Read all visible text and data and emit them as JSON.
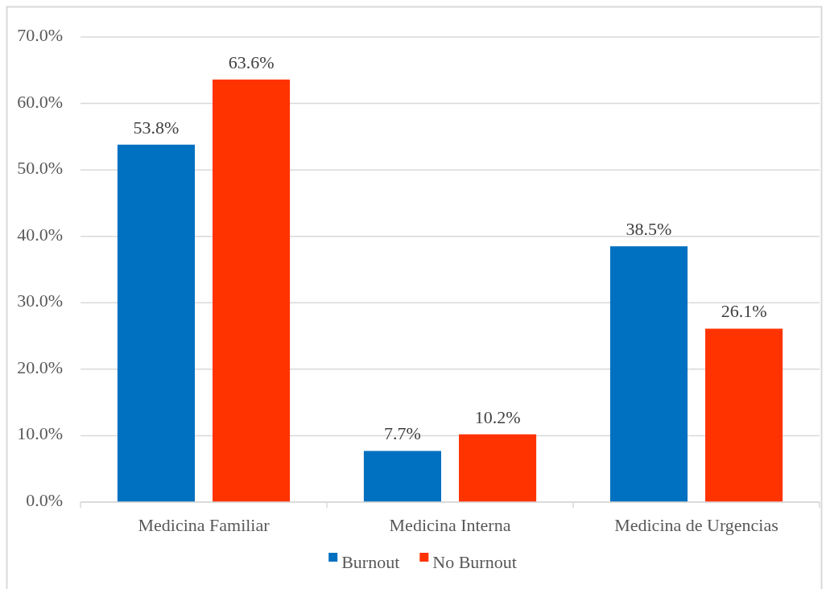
{
  "chart_data": {
    "type": "bar",
    "categories": [
      "Medicina Familiar",
      "Medicina Interna",
      "Medicina de Urgencias"
    ],
    "series": [
      {
        "name": "Burnout",
        "color": "#0070c0",
        "values": [
          53.8,
          7.7,
          38.5
        ],
        "value_labels": [
          "53.8%",
          "7.7%",
          "38.5%"
        ]
      },
      {
        "name": "No Burnout",
        "color": "#ff3300",
        "values": [
          63.6,
          10.2,
          26.1
        ],
        "value_labels": [
          "63.6%",
          "10.2%",
          "26.1%"
        ]
      }
    ],
    "ylim": [
      0,
      70
    ],
    "yticks": [
      {
        "value": 0,
        "label": "0.0%"
      },
      {
        "value": 10,
        "label": "10.0%"
      },
      {
        "value": 20,
        "label": "20.0%"
      },
      {
        "value": 30,
        "label": "30.0%"
      },
      {
        "value": 40,
        "label": "40.0%"
      },
      {
        "value": 50,
        "label": "50.0%"
      },
      {
        "value": 60,
        "label": "60.0%"
      },
      {
        "value": 70,
        "label": "70.0%"
      }
    ],
    "grid": "y",
    "legend": "bottom"
  }
}
